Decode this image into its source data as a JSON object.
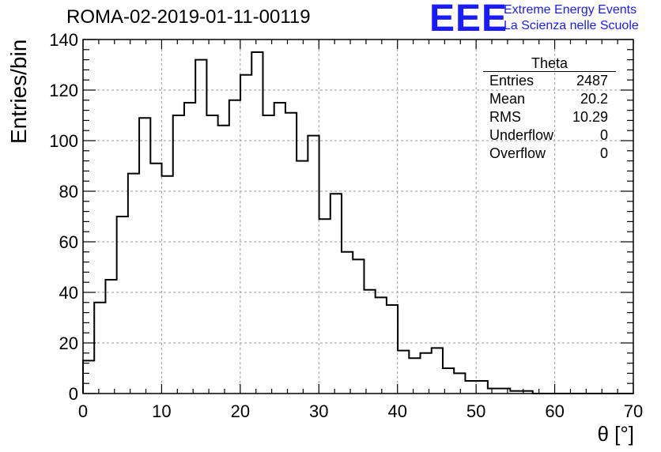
{
  "header": {
    "title": "ROMA-02-2019-01-11-00119",
    "logo_text": "EEE",
    "org_line1": "Extreme Energy Events",
    "org_line2": "La Scienza nelle Scuole",
    "brand_color": "#1a1aff"
  },
  "stats": {
    "name": "Theta",
    "rows": [
      {
        "label": "Entries",
        "value": "2487"
      },
      {
        "label": "Mean",
        "value": "20.2"
      },
      {
        "label": "RMS",
        "value": "10.29"
      },
      {
        "label": "Underflow",
        "value": "0"
      },
      {
        "label": "Overflow",
        "value": "0"
      }
    ]
  },
  "chart_data": {
    "type": "histogram",
    "title": "ROMA-02-2019-01-11-00119",
    "xlabel": "θ [°]",
    "ylabel": "Entries/bin",
    "xlim": [
      0,
      70
    ],
    "ylim": [
      0,
      140
    ],
    "grid": true,
    "bin_width": 1.43,
    "x_tick_labels": [
      "0",
      "10",
      "20",
      "30",
      "40",
      "50",
      "60",
      "70"
    ],
    "y_tick_labels": [
      "0",
      "20",
      "40",
      "60",
      "80",
      "100",
      "120",
      "140"
    ],
    "values": [
      13,
      36,
      45,
      70,
      87,
      109,
      91,
      86,
      110,
      115,
      132,
      110,
      106,
      116,
      126,
      135,
      110,
      115,
      111,
      92,
      102,
      69,
      79,
      56,
      53,
      41,
      38,
      35,
      17,
      14,
      16,
      18,
      10,
      8,
      5,
      5,
      2,
      2,
      1,
      1,
      0,
      0,
      0,
      0,
      0,
      0,
      0,
      0,
      0
    ],
    "line_color": "#000000",
    "grid_color": "#9a9a9a"
  }
}
